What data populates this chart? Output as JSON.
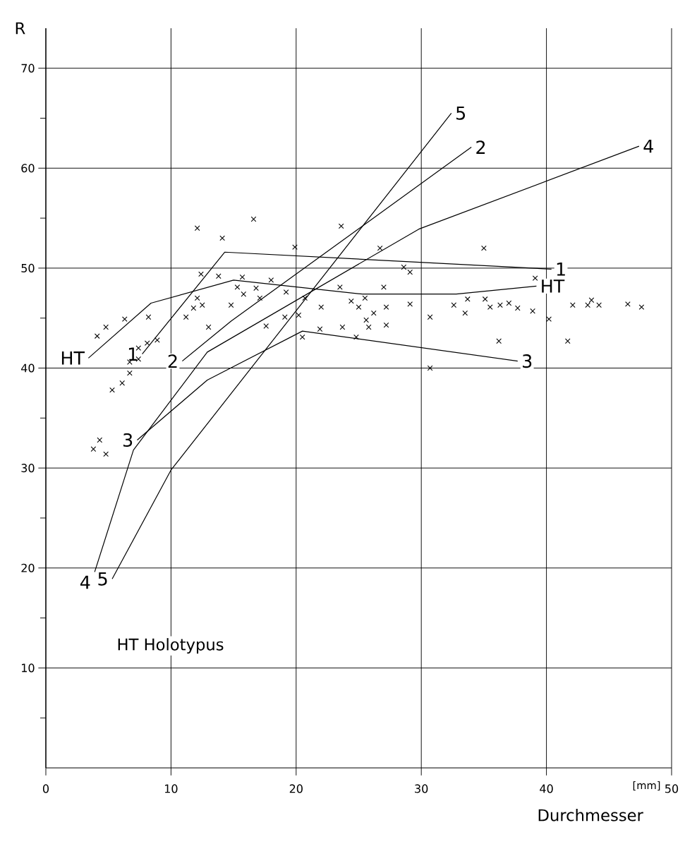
{
  "chart_data": {
    "type": "line",
    "xlabel": "Durchmesser",
    "ylabel": "R",
    "annotations": [
      "HT Holotypus",
      "[mm]"
    ],
    "xlim": [
      0,
      50
    ],
    "ylim": [
      0,
      74
    ],
    "xticks": [
      0,
      10,
      20,
      30,
      40,
      50
    ],
    "yticks": [
      {
        "value": 5,
        "label": null
      },
      10,
      {
        "value": 15,
        "label": null
      },
      20,
      {
        "value": 25,
        "label": null
      },
      30,
      {
        "value": 35,
        "label": null
      },
      40,
      {
        "value": 45,
        "label": null
      },
      50,
      {
        "value": 55,
        "label": null
      },
      60,
      {
        "value": 65,
        "label": null
      },
      70
    ],
    "grid": true,
    "series": [
      {
        "name": "HT",
        "color": "#000000",
        "x": [
          3.4,
          8.4,
          15.0,
          25.3,
          32.8,
          39.2
        ],
        "values": [
          41.0,
          46.5,
          48.8,
          47.4,
          47.4,
          48.2
        ]
      },
      {
        "name": "1",
        "color": "#000000",
        "x": [
          7.7,
          14.3,
          40.4
        ],
        "values": [
          41.4,
          51.6,
          49.9
        ]
      },
      {
        "name": "2",
        "color": "#000000",
        "x": [
          10.9,
          14.8,
          34.0
        ],
        "values": [
          40.7,
          44.7,
          62.1
        ]
      },
      {
        "name": "3",
        "color": "#000000",
        "x": [
          7.3,
          12.9,
          20.5,
          37.7
        ],
        "values": [
          32.8,
          38.8,
          43.7,
          40.7
        ]
      },
      {
        "name": "4",
        "color": "#000000",
        "x": [
          3.9,
          7.0,
          12.9,
          29.8,
          47.4
        ],
        "values": [
          19.6,
          31.8,
          41.6,
          53.9,
          62.2
        ]
      },
      {
        "name": "5",
        "color": "#000000",
        "x": [
          5.3,
          10.0,
          32.4
        ],
        "values": [
          18.9,
          29.8,
          65.5
        ]
      },
      {
        "type": "scatter",
        "color": "#000000",
        "marker": "cross",
        "x": [
          12.1,
          14.1,
          16.6,
          12.4,
          13.8,
          15.7,
          18.0,
          15.3,
          16.8,
          15.8,
          17.1,
          12.1,
          11.8,
          12.5,
          14.8,
          11.2,
          13.0,
          17.6,
          6.3,
          8.2,
          4.8,
          4.1,
          8.1,
          8.9,
          7.4,
          7.4,
          6.7,
          6.7,
          6.1,
          5.3,
          23.6,
          19.9,
          26.7,
          28.6,
          29.1,
          19.2,
          23.5,
          27.0,
          20.7,
          25.5,
          24.4,
          25.0,
          22.0,
          27.2,
          29.1,
          26.2,
          20.2,
          19.1,
          25.6,
          30.7,
          32.6,
          33.7,
          33.5,
          21.9,
          23.7,
          25.8,
          27.2,
          20.5,
          24.8,
          30.7,
          35.0,
          39.1,
          35.1,
          35.5,
          36.3,
          37.0,
          37.7,
          38.9,
          40.2,
          42.1,
          43.3,
          43.6,
          44.2,
          46.5,
          47.6,
          36.2,
          41.7,
          4.3,
          3.8,
          4.8
        ],
        "values": [
          54.0,
          53.0,
          54.9,
          49.4,
          49.2,
          49.1,
          48.8,
          48.1,
          48.0,
          47.4,
          47.0,
          47.0,
          46.0,
          46.3,
          46.3,
          45.1,
          44.1,
          44.2,
          44.9,
          45.1,
          44.1,
          43.2,
          42.5,
          42.8,
          42.0,
          40.9,
          40.6,
          39.5,
          38.5,
          37.8,
          54.2,
          52.1,
          52.0,
          50.1,
          49.6,
          47.6,
          48.1,
          48.1,
          47.0,
          47.0,
          46.7,
          46.1,
          46.1,
          46.1,
          46.4,
          45.5,
          45.3,
          45.1,
          44.8,
          45.1,
          46.3,
          46.9,
          45.5,
          43.9,
          44.1,
          44.1,
          44.3,
          43.1,
          43.1,
          40.0,
          52.0,
          49.0,
          46.9,
          46.1,
          46.3,
          46.5,
          46.0,
          45.7,
          44.9,
          46.3,
          46.3,
          46.8,
          46.3,
          46.4,
          46.1,
          42.7,
          42.7,
          32.8,
          31.9,
          31.4
        ]
      }
    ]
  }
}
